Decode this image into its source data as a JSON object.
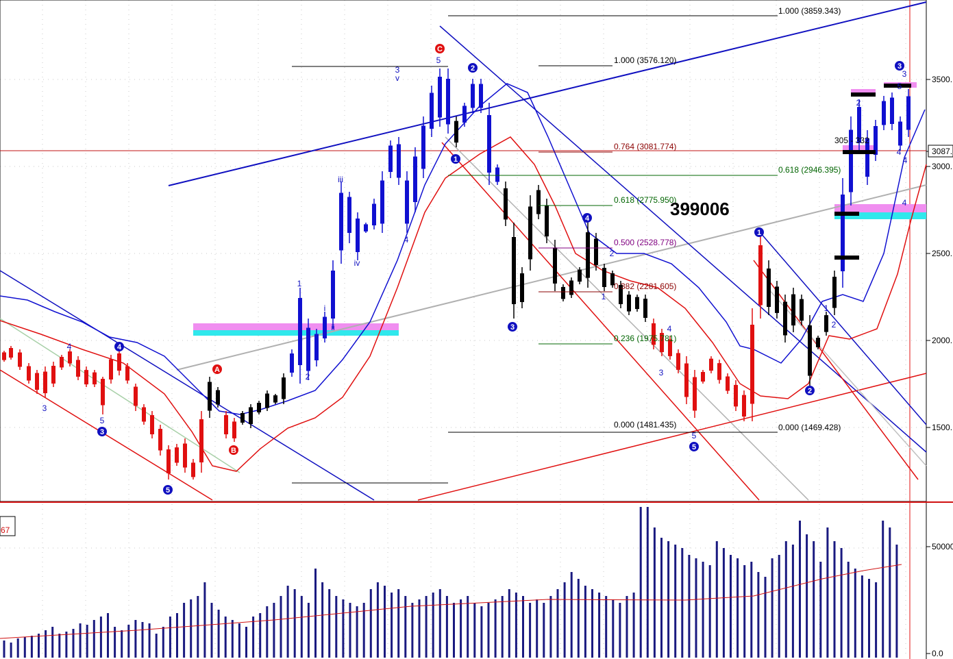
{
  "chart_data": {
    "type": "candlestick",
    "symbol": "399006",
    "price_axis": {
      "ticks": [
        "3500.",
        "3087.",
        "3000.",
        "2500.",
        "2000.",
        "1500."
      ],
      "current_label": "3087."
    },
    "volume_axis": {
      "ticks": [
        "50000",
        "0.0"
      ]
    },
    "volume_label": "67",
    "fib_levels": [
      {
        "label": "1.000 (3859.343)",
        "color": "#000000"
      },
      {
        "label": "1.000 (3576.120)",
        "color": "#000000"
      },
      {
        "label": "0.764 (3081.774)",
        "color": "#8b0000"
      },
      {
        "label": "0.618 (2946.395)",
        "color": "#006400"
      },
      {
        "label": "0.618 (2775.950)",
        "color": "#006400"
      },
      {
        "label": "0.500 (2528.778)",
        "color": "#800080"
      },
      {
        "label": "0.382 (2281.605)",
        "color": "#8b0000"
      },
      {
        "label": "0.236 (1975.781)",
        "color": "#006400"
      },
      {
        "label": "0.000 (1481.435)",
        "color": "#000000"
      },
      {
        "label": "0.000 (1469.428)",
        "color": "#000000"
      }
    ],
    "annotation_text": "305 - 332",
    "wave_circles": [
      {
        "label": "C",
        "color": "#e01010"
      },
      {
        "label": "A",
        "color": "#e01010"
      },
      {
        "label": "B",
        "color": "#e01010"
      },
      {
        "label": "1",
        "color": "#1010c0"
      },
      {
        "label": "2",
        "color": "#1010c0"
      },
      {
        "label": "3",
        "color": "#1010c0"
      },
      {
        "label": "4",
        "color": "#1010c0"
      },
      {
        "label": "5",
        "color": "#1010c0"
      }
    ],
    "wave_labels": [
      "1",
      "2",
      "3",
      "4",
      "5",
      "i",
      "ii",
      "iii",
      "iv",
      "v"
    ],
    "colors": {
      "up_candle": "#1010d0",
      "down_candle": "#e01010",
      "black_candle": "#000000",
      "ma_blue": "#1010d0",
      "ma_red": "#e01010",
      "channel_gray": "#b0b0b0",
      "volume_bar": "#1a1a80",
      "zone_magenta": "#f08ef0",
      "zone_cyan": "#30e8ec"
    }
  }
}
